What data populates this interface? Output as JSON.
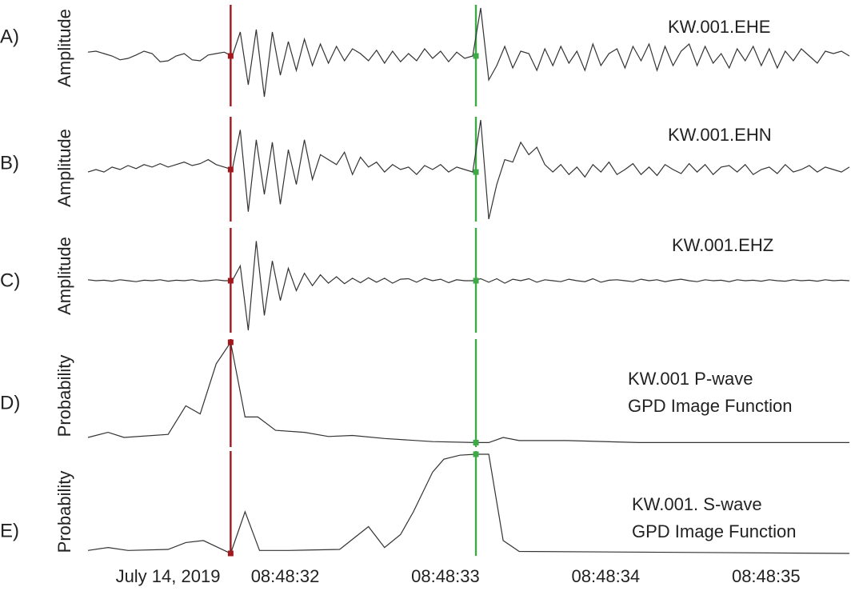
{
  "chart_data": {
    "type": "line",
    "date_label": "July 14, 2019",
    "xlim": [
      30.77,
      35.52
    ],
    "xticks": [
      {
        "value": 32,
        "label": "08:48:32"
      },
      {
        "value": 33,
        "label": "08:48:33"
      },
      {
        "value": 34,
        "label": "08:48:34"
      },
      {
        "value": 35,
        "label": "08:48:35"
      }
    ],
    "p_pick": 31.66,
    "p_color": "#a0191e",
    "s_pick": 33.19,
    "s_color": "#3daa47",
    "x": [
      30.77,
      30.82,
      30.87,
      30.92,
      30.97,
      31.02,
      31.07,
      31.12,
      31.17,
      31.22,
      31.27,
      31.32,
      31.37,
      31.42,
      31.47,
      31.52,
      31.57,
      31.62,
      31.67,
      31.72,
      31.77,
      31.82,
      31.87,
      31.92,
      31.97,
      32.02,
      32.07,
      32.12,
      32.17,
      32.22,
      32.27,
      32.32,
      32.37,
      32.42,
      32.47,
      32.52,
      32.57,
      32.62,
      32.67,
      32.72,
      32.77,
      32.82,
      32.87,
      32.92,
      32.97,
      33.02,
      33.07,
      33.12,
      33.17,
      33.22,
      33.27,
      33.32,
      33.37,
      33.42,
      33.47,
      33.52,
      33.57,
      33.62,
      33.67,
      33.72,
      33.77,
      33.82,
      33.87,
      33.92,
      33.97,
      34.02,
      34.07,
      34.12,
      34.17,
      34.22,
      34.27,
      34.32,
      34.37,
      34.42,
      34.47,
      34.52,
      34.57,
      34.62,
      34.67,
      34.72,
      34.77,
      34.82,
      34.87,
      34.92,
      34.97,
      35.02,
      35.07,
      35.12,
      35.17,
      35.22,
      35.27,
      35.32,
      35.37,
      35.42,
      35.47,
      35.52
    ],
    "panels": [
      {
        "label": "A)",
        "ylabel": "Amplitude",
        "title": [
          "KW.001.EHE"
        ],
        "ylim": [
          -1,
          1
        ],
        "values": [
          0.08,
          0.1,
          0.05,
          0.0,
          -0.08,
          -0.05,
          0.02,
          0.1,
          0.05,
          -0.12,
          -0.1,
          0.0,
          0.05,
          -0.08,
          -0.1,
          0.02,
          0.05,
          0.08,
          0.0,
          0.5,
          -0.6,
          0.55,
          -0.85,
          0.5,
          -0.4,
          0.3,
          -0.3,
          0.35,
          -0.2,
          0.25,
          -0.15,
          0.2,
          -0.1,
          0.15,
          0.05,
          -0.1,
          0.12,
          -0.15,
          0.1,
          -0.12,
          0.05,
          -0.1,
          0.15,
          -0.05,
          0.1,
          -0.12,
          0.08,
          -0.05,
          0.0,
          1.0,
          -0.5,
          -0.2,
          0.2,
          -0.25,
          0.1,
          0.05,
          -0.3,
          0.15,
          -0.2,
          0.2,
          -0.15,
          0.1,
          -0.3,
          0.25,
          -0.2,
          0.05,
          0.15,
          -0.25,
          0.2,
          -0.1,
          0.25,
          -0.3,
          0.2,
          -0.2,
          0.1,
          0.25,
          -0.2,
          0.2,
          -0.15,
          0.05,
          -0.25,
          0.15,
          -0.1,
          0.2,
          -0.2,
          0.15,
          -0.25,
          0.1,
          -0.1,
          0.15,
          0.0,
          -0.15,
          0.1,
          0.05,
          0.1,
          0.0
        ]
      },
      {
        "label": "B)",
        "ylabel": "Amplitude",
        "title": [
          "KW.001.EHN"
        ],
        "ylim": [
          -1,
          1
        ],
        "values": [
          -0.05,
          0.0,
          -0.05,
          0.05,
          0.0,
          0.08,
          0.02,
          0.1,
          0.05,
          0.12,
          0.05,
          0.1,
          0.15,
          0.08,
          0.12,
          0.2,
          0.1,
          0.05,
          0.0,
          0.8,
          -0.85,
          0.6,
          -0.5,
          0.55,
          -0.7,
          0.4,
          -0.3,
          0.6,
          -0.2,
          0.3,
          0.2,
          0.1,
          0.35,
          -0.1,
          0.25,
          0.05,
          0.15,
          -0.05,
          0.1,
          0.0,
          0.05,
          -0.1,
          0.08,
          0.0,
          0.1,
          -0.05,
          0.05,
          0.0,
          -0.05,
          1.0,
          -1.0,
          -0.3,
          0.2,
          0.15,
          0.55,
          0.3,
          0.45,
          0.1,
          -0.05,
          0.1,
          -0.1,
          0.05,
          -0.15,
          0.1,
          -0.05,
          0.15,
          -0.1,
          0.0,
          0.12,
          -0.1,
          0.05,
          -0.12,
          0.1,
          0.0,
          -0.08,
          0.12,
          -0.05,
          0.1,
          -0.1,
          0.05,
          0.08,
          -0.05,
          0.1,
          -0.1,
          0.0,
          0.05,
          -0.08,
          0.1,
          -0.05,
          0.0,
          0.08,
          -0.05,
          0.05,
          0.0,
          -0.05,
          0.05
        ]
      },
      {
        "label": "C)",
        "ylabel": "Amplitude",
        "title": [
          "KW.001.EHZ"
        ],
        "ylim": [
          -1,
          1
        ],
        "values": [
          0.02,
          0.0,
          0.01,
          -0.01,
          0.02,
          0.0,
          -0.02,
          0.01,
          0.0,
          0.02,
          -0.01,
          0.01,
          0.0,
          0.02,
          -0.01,
          0.0,
          0.02,
          0.0,
          0.0,
          0.3,
          -1.0,
          0.8,
          -0.7,
          0.4,
          -0.4,
          0.25,
          -0.2,
          0.15,
          -0.1,
          0.12,
          -0.05,
          0.08,
          -0.06,
          0.05,
          -0.04,
          0.06,
          -0.03,
          0.05,
          -0.05,
          0.03,
          0.04,
          -0.03,
          0.05,
          0.0,
          0.03,
          -0.04,
          0.02,
          0.0,
          0.0,
          0.04,
          -0.03,
          0.04,
          -0.05,
          0.03,
          0.0,
          0.04,
          -0.03,
          0.02,
          0.0,
          -0.02,
          0.03,
          0.0,
          -0.02,
          0.04,
          -0.03,
          0.01,
          0.02,
          0.0,
          -0.02,
          0.03,
          0.0,
          0.02,
          -0.02,
          0.01,
          0.03,
          0.0,
          -0.02,
          0.02,
          0.0,
          0.01,
          -0.02,
          0.02,
          0.0,
          0.01,
          -0.01,
          0.02,
          0.0,
          -0.01,
          0.02,
          0.0,
          0.01,
          -0.01,
          0.02,
          0.0,
          0.01,
          0.0
        ]
      },
      {
        "label": "D)",
        "ylabel": "Probability",
        "title": [
          "KW.001 P-wave",
          "GPD Image Function"
        ],
        "ylim": [
          0,
          1
        ],
        "x": [
          30.77,
          30.895,
          30.995,
          31.27,
          31.38,
          31.47,
          31.57,
          31.66,
          31.75,
          31.83,
          31.94,
          32.12,
          32.27,
          32.42,
          32.62,
          32.92,
          33.19,
          33.27,
          33.36,
          33.46,
          33.76,
          34.21,
          35.52
        ],
        "values": [
          0.07,
          0.12,
          0.07,
          0.1,
          0.38,
          0.3,
          0.79,
          1.0,
          0.27,
          0.27,
          0.14,
          0.12,
          0.08,
          0.09,
          0.06,
          0.03,
          0.02,
          0.02,
          0.07,
          0.04,
          0.04,
          0.02,
          0.02
        ]
      },
      {
        "label": "E)",
        "ylabel": "Probability",
        "title": [
          "KW.001. S-wave",
          "GPD Image Function"
        ],
        "ylim": [
          0,
          1
        ],
        "x": [
          30.77,
          30.895,
          31.02,
          31.27,
          31.38,
          31.49,
          31.66,
          31.75,
          31.84,
          32.02,
          32.34,
          32.52,
          32.62,
          32.72,
          32.8,
          32.92,
          32.99,
          33.09,
          33.19,
          33.27,
          33.36,
          33.46,
          35.52
        ],
        "values": [
          0.03,
          0.06,
          0.03,
          0.04,
          0.11,
          0.13,
          0.0,
          0.42,
          0.03,
          0.03,
          0.04,
          0.27,
          0.06,
          0.19,
          0.42,
          0.82,
          0.95,
          0.99,
          1.0,
          1.0,
          0.13,
          0.02,
          0.0
        ]
      }
    ]
  }
}
